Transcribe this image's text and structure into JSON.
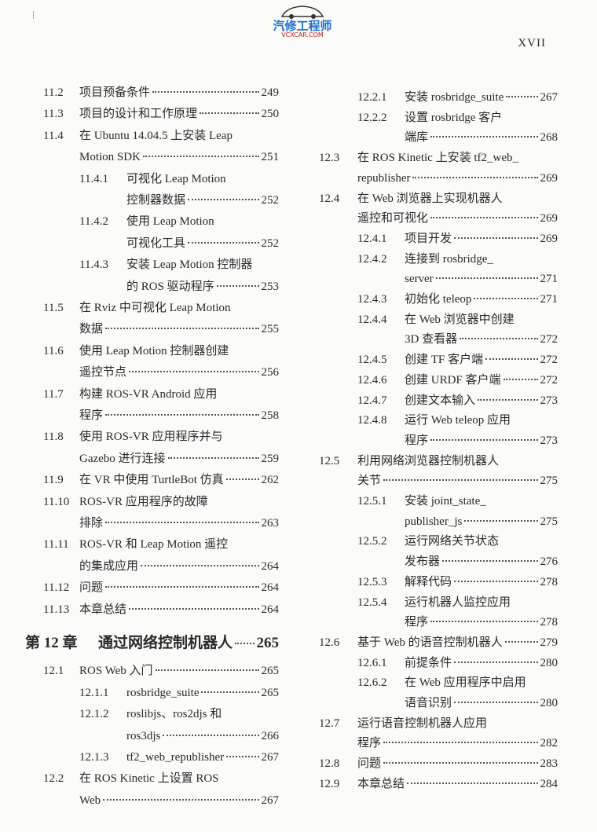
{
  "header": {
    "logo": "汽修工程师",
    "logo_sub": "VCXCAR.COM",
    "page_number": "XVII"
  },
  "toc": {
    "left": [
      {
        "num": "11.2",
        "lines": [
          "项目预备条件"
        ],
        "page": 249
      },
      {
        "num": "11.3",
        "lines": [
          "项目的设计和工作原理"
        ],
        "page": 250
      },
      {
        "num": "11.4",
        "lines": [
          "在 Ubuntu 14.04.5 上安装 Leap",
          "Motion SDK"
        ],
        "page": 251
      },
      {
        "num": "11.4.1",
        "lines": [
          "可视化 Leap Motion",
          "控制器数据"
        ],
        "page": 252
      },
      {
        "num": "11.4.2",
        "lines": [
          "使用 Leap Motion",
          "可视化工具"
        ],
        "page": 252
      },
      {
        "num": "11.4.3",
        "lines": [
          "安装 Leap Motion 控制器",
          "的 ROS 驱动程序"
        ],
        "page": 253
      },
      {
        "num": "11.5",
        "lines": [
          "在 Rviz 中可视化 Leap Motion",
          "数据"
        ],
        "page": 255
      },
      {
        "num": "11.6",
        "lines": [
          "使用 Leap Motion 控制器创建",
          "遥控节点"
        ],
        "page": 256
      },
      {
        "num": "11.7",
        "lines": [
          "构建 ROS-VR Android 应用",
          "程序"
        ],
        "page": 258
      },
      {
        "num": "11.8",
        "lines": [
          "使用 ROS-VR 应用程序并与",
          "Gazebo 进行连接"
        ],
        "page": 259
      },
      {
        "num": "11.9",
        "lines": [
          "在 VR 中使用 TurtleBot 仿真"
        ],
        "page": 262
      },
      {
        "num": "11.10",
        "lines": [
          "ROS-VR 应用程序的故障",
          "排除"
        ],
        "page": 263
      },
      {
        "num": "11.11",
        "lines": [
          "ROS-VR 和 Leap Motion 遥控",
          "的集成应用"
        ],
        "page": 264
      },
      {
        "num": "11.12",
        "lines": [
          "问题"
        ],
        "page": 264
      },
      {
        "num": "11.13",
        "lines": [
          "本章总结"
        ],
        "page": 264
      },
      {
        "num": "第 12 章",
        "lines": [
          "通过网络控制机器人"
        ],
        "page": 265
      },
      {
        "num": "12.1",
        "lines": [
          "ROS Web 入门"
        ],
        "page": 265
      },
      {
        "num": "12.1.1",
        "lines": [
          "rosbridge_suite"
        ],
        "page": 265
      },
      {
        "num": "12.1.2",
        "lines": [
          "roslibjs、ros2djs 和",
          "ros3djs"
        ],
        "page": 266
      },
      {
        "num": "12.1.3",
        "lines": [
          "tf2_web_republisher"
        ],
        "page": 267
      },
      {
        "num": "12.2",
        "lines": [
          "在 ROS Kinetic 上设置 ROS",
          "Web"
        ],
        "page": 267
      }
    ],
    "right": [
      {
        "num": "12.2.1",
        "lines": [
          "安装 rosbridge_suite"
        ],
        "page": 267
      },
      {
        "num": "12.2.2",
        "lines": [
          "设置 rosbridge 客户",
          "端库"
        ],
        "page": 268
      },
      {
        "num": "12.3",
        "lines": [
          "在 ROS Kinetic 上安装 tf2_web_",
          "republisher"
        ],
        "page": 269
      },
      {
        "num": "12.4",
        "lines": [
          "在 Web 浏览器上实现机器人",
          "遥控和可视化"
        ],
        "page": 269
      },
      {
        "num": "12.4.1",
        "lines": [
          "项目开发"
        ],
        "page": 269
      },
      {
        "num": "12.4.2",
        "lines": [
          "连接到 rosbridge_",
          "server"
        ],
        "page": 271
      },
      {
        "num": "12.4.3",
        "lines": [
          "初始化 teleop"
        ],
        "page": 271
      },
      {
        "num": "12.4.4",
        "lines": [
          "在 Web 浏览器中创建",
          "3D 查看器"
        ],
        "page": 272
      },
      {
        "num": "12.4.5",
        "lines": [
          "创建 TF 客户端"
        ],
        "page": 272
      },
      {
        "num": "12.4.6",
        "lines": [
          "创建 URDF 客户端"
        ],
        "page": 272
      },
      {
        "num": "12.4.7",
        "lines": [
          "创建文本输入"
        ],
        "page": 273
      },
      {
        "num": "12.4.8",
        "lines": [
          "运行 Web teleop 应用",
          "程序"
        ],
        "page": 273
      },
      {
        "num": "12.5",
        "lines": [
          "利用网络浏览器控制机器人",
          "关节"
        ],
        "page": 275
      },
      {
        "num": "12.5.1",
        "lines": [
          "安装 joint_state_",
          "publisher_js"
        ],
        "page": 275
      },
      {
        "num": "12.5.2",
        "lines": [
          "运行网络关节状态",
          "发布器"
        ],
        "page": 276
      },
      {
        "num": "12.5.3",
        "lines": [
          "解释代码"
        ],
        "page": 278
      },
      {
        "num": "12.5.4",
        "lines": [
          "运行机器人监控应用",
          "程序"
        ],
        "page": 278
      },
      {
        "num": "12.6",
        "lines": [
          "基于 Web 的语音控制机器人"
        ],
        "page": 279
      },
      {
        "num": "12.6.1",
        "lines": [
          "前提条件"
        ],
        "page": 280
      },
      {
        "num": "12.6.2",
        "lines": [
          "在 Web 应用程序中启用",
          "语音识别"
        ],
        "page": 280
      },
      {
        "num": "12.7",
        "lines": [
          "运行语音控制机器人应用",
          "程序"
        ],
        "page": 282
      },
      {
        "num": "12.8",
        "lines": [
          "问题"
        ],
        "page": 283
      },
      {
        "num": "12.9",
        "lines": [
          "本章总结"
        ],
        "page": 284
      }
    ]
  }
}
